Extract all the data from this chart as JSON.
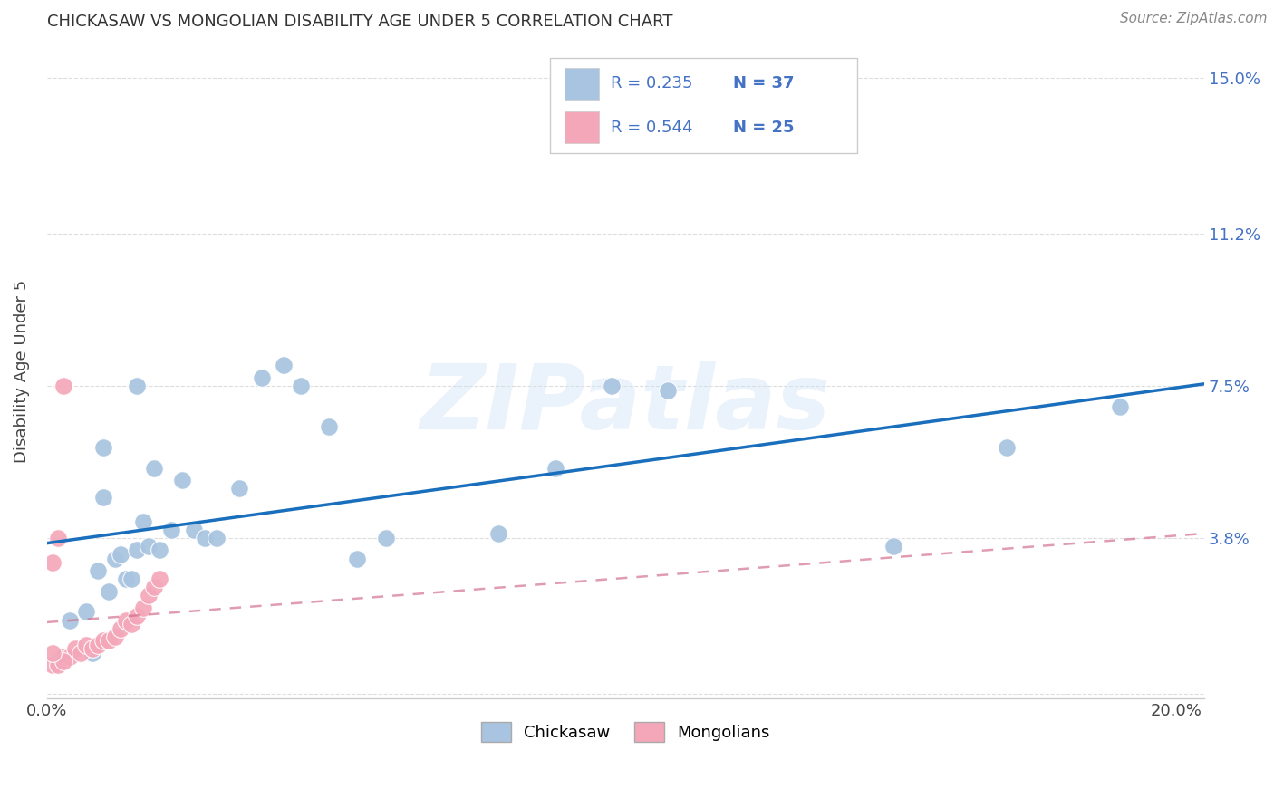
{
  "title": "CHICKASAW VS MONGOLIAN DISABILITY AGE UNDER 5 CORRELATION CHART",
  "source": "Source: ZipAtlas.com",
  "ylabel": "Disability Age Under 5",
  "xlim": [
    0.0,
    0.205
  ],
  "ylim": [
    -0.001,
    0.158
  ],
  "ytick_vals": [
    0.0,
    0.038,
    0.075,
    0.112,
    0.15
  ],
  "ytick_labels_right": [
    "",
    "3.8%",
    "7.5%",
    "11.2%",
    "15.0%"
  ],
  "xtick_vals": [
    0.0,
    0.05,
    0.1,
    0.15,
    0.2
  ],
  "xtick_labels": [
    "0.0%",
    "",
    "",
    "",
    "20.0%"
  ],
  "legend_text_color": "#4472c4",
  "chickasaw_color": "#a8c4e0",
  "mongolian_color": "#f4a7b9",
  "trend_blue": "#1a6fbd",
  "trend_pink": "#d06888",
  "watermark": "ZIPatlas",
  "chickasaw_x": [
    0.002,
    0.004,
    0.007,
    0.008,
    0.009,
    0.01,
    0.011,
    0.012,
    0.013,
    0.014,
    0.015,
    0.016,
    0.017,
    0.018,
    0.019,
    0.02,
    0.022,
    0.024,
    0.026,
    0.028,
    0.03,
    0.034,
    0.038,
    0.042,
    0.05,
    0.055,
    0.06,
    0.08,
    0.09,
    0.1,
    0.11,
    0.15,
    0.17,
    0.19,
    0.01,
    0.016,
    0.045
  ],
  "chickasaw_y": [
    0.008,
    0.018,
    0.02,
    0.01,
    0.03,
    0.048,
    0.025,
    0.033,
    0.034,
    0.028,
    0.028,
    0.035,
    0.042,
    0.036,
    0.055,
    0.035,
    0.04,
    0.052,
    0.04,
    0.038,
    0.038,
    0.05,
    0.077,
    0.08,
    0.065,
    0.033,
    0.038,
    0.039,
    0.055,
    0.075,
    0.074,
    0.036,
    0.06,
    0.07,
    0.06,
    0.075,
    0.075
  ],
  "mongolian_x": [
    0.001,
    0.002,
    0.003,
    0.004,
    0.005,
    0.006,
    0.007,
    0.008,
    0.009,
    0.01,
    0.011,
    0.012,
    0.013,
    0.014,
    0.015,
    0.016,
    0.017,
    0.018,
    0.019,
    0.02,
    0.001,
    0.002,
    0.003,
    0.003,
    0.001
  ],
  "mongolian_y": [
    0.007,
    0.007,
    0.009,
    0.009,
    0.011,
    0.01,
    0.012,
    0.011,
    0.012,
    0.013,
    0.013,
    0.014,
    0.016,
    0.018,
    0.017,
    0.019,
    0.021,
    0.024,
    0.026,
    0.028,
    0.032,
    0.038,
    0.075,
    0.008,
    0.01
  ]
}
